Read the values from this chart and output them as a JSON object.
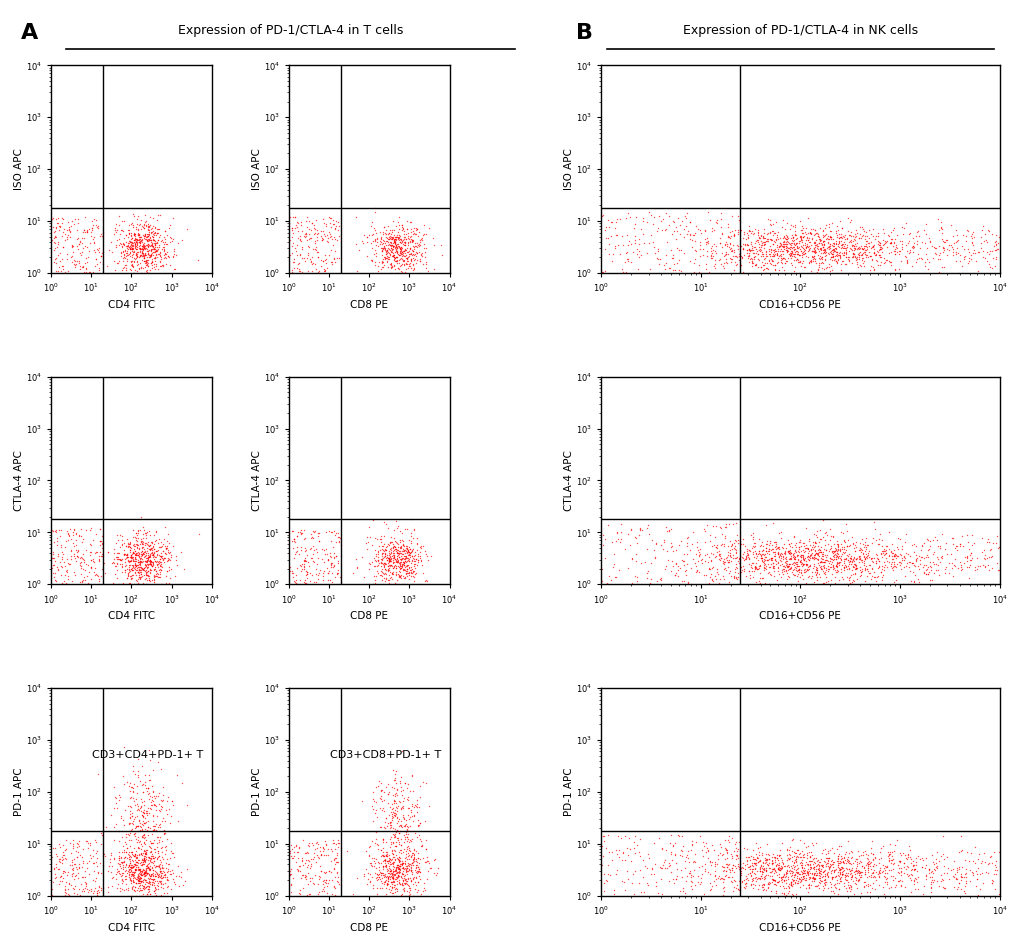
{
  "title_A": "Expression of PD-1/CTLA-4 in T cells",
  "title_B": "Expression of PD-1/CTLA-4 in NK cells",
  "label_A": "A",
  "label_B": "B",
  "dot_color": "#FF0000",
  "dot_size": 1.0,
  "dot_alpha": 0.7,
  "background_color": "#FFFFFF",
  "axes_A": [
    {
      "row": 0,
      "col": 0,
      "ylabel": "ISO APC",
      "xlabel": "CD4 FITC",
      "xgate": 20,
      "ygate": 18,
      "annotation": ""
    },
    {
      "row": 0,
      "col": 1,
      "ylabel": "ISO APC",
      "xlabel": "CD8 PE",
      "xgate": 20,
      "ygate": 18,
      "annotation": ""
    },
    {
      "row": 1,
      "col": 0,
      "ylabel": "CTLA-4 APC",
      "xlabel": "CD4 FITC",
      "xgate": 20,
      "ygate": 18,
      "annotation": ""
    },
    {
      "row": 1,
      "col": 1,
      "ylabel": "CTLA-4 APC",
      "xlabel": "CD8 PE",
      "xgate": 20,
      "ygate": 18,
      "annotation": ""
    },
    {
      "row": 2,
      "col": 0,
      "ylabel": "PD-1 APC",
      "xlabel": "CD4 FITC",
      "xgate": 20,
      "ygate": 18,
      "annotation": "CD3+CD4+PD-1+ T"
    },
    {
      "row": 2,
      "col": 1,
      "ylabel": "PD-1 APC",
      "xlabel": "CD8 PE",
      "xgate": 20,
      "ygate": 18,
      "annotation": "CD3+CD8+PD-1+ T"
    }
  ],
  "axes_B": [
    {
      "row": 0,
      "ylabel": "ISO APC",
      "xlabel": "CD16+CD56 PE",
      "xgate": 25,
      "ygate": 18,
      "annotation": ""
    },
    {
      "row": 1,
      "ylabel": "CTLA-4 APC",
      "xlabel": "CD16+CD56 PE",
      "xgate": 25,
      "ygate": 18,
      "annotation": ""
    },
    {
      "row": 2,
      "ylabel": "PD-1 APC",
      "xlabel": "CD16+CD56 PE",
      "xgate": 25,
      "ygate": 18,
      "annotation": ""
    }
  ]
}
